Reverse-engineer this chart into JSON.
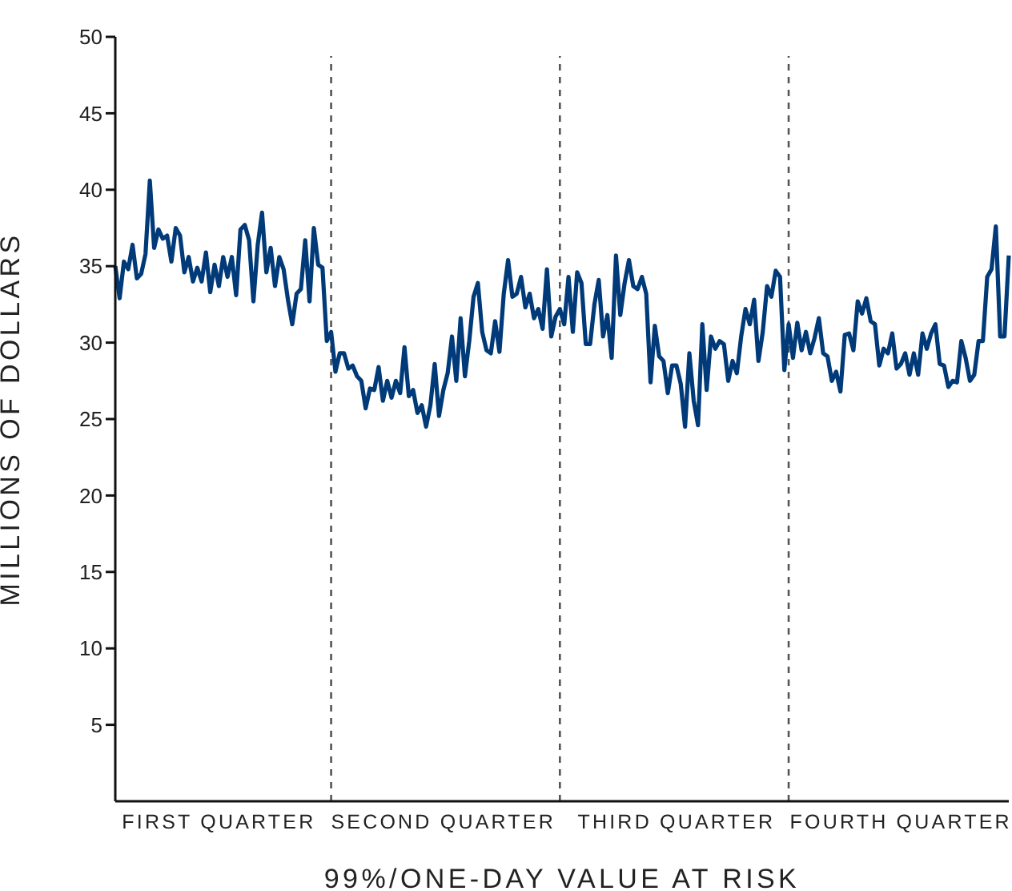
{
  "chart_data": {
    "type": "line",
    "xlabel": "99%/ONE-DAY VALUE AT RISK",
    "ylabel": "MILLIONS OF DOLLARS",
    "categories": [
      null,
      null,
      null,
      null,
      null,
      null,
      null,
      null,
      null,
      null,
      null,
      null,
      null,
      null,
      null,
      null,
      null,
      null,
      null,
      null,
      null,
      null,
      null,
      null,
      "FIRST QUARTER",
      null,
      null,
      null,
      null,
      null,
      null,
      null,
      null,
      null,
      null,
      null,
      null,
      null,
      null,
      null,
      null,
      null,
      null,
      null,
      null,
      null,
      null,
      null,
      null,
      null,
      null,
      null,
      null,
      null,
      null,
      null,
      null,
      null,
      null,
      null,
      null,
      null,
      null,
      null,
      null,
      null,
      null,
      null,
      null,
      null,
      null,
      null,
      null,
      null,
      null,
      null,
      "SECOND QUARTER",
      null,
      null,
      null,
      null,
      null,
      null,
      null,
      null,
      null,
      null,
      null,
      null,
      null,
      null,
      null,
      null,
      null,
      null,
      null,
      null,
      null,
      null,
      null,
      null,
      null,
      null,
      null,
      null,
      null,
      null,
      null,
      null,
      null,
      null,
      null,
      null,
      null,
      null,
      null,
      null,
      null,
      null,
      null,
      null,
      null,
      null,
      null,
      null,
      null,
      null,
      null,
      null,
      null,
      "THIRD QUARTER",
      null,
      null,
      null,
      null,
      null,
      null,
      null,
      null,
      null,
      null,
      null,
      null,
      null,
      null,
      null,
      null,
      null,
      null,
      null,
      null,
      null,
      null,
      null,
      null,
      null,
      null,
      null,
      null,
      null,
      null,
      null,
      null,
      null,
      null,
      null,
      null,
      null,
      null,
      null,
      null,
      null,
      null,
      null,
      null,
      null,
      null,
      null,
      null,
      null,
      null,
      null,
      "FOURTH QUARTER",
      null,
      null,
      null,
      null,
      null,
      null,
      null,
      null,
      null,
      null,
      null,
      null,
      null,
      null,
      null,
      null,
      null,
      null,
      null,
      null,
      null,
      null,
      null,
      null,
      null
    ],
    "ylim": [
      0,
      50
    ],
    "yticks": [
      5,
      10,
      15,
      20,
      25,
      30,
      35,
      40,
      45,
      50
    ],
    "grid": false,
    "legend": false,
    "marker": "none",
    "line_style": "solid",
    "series": [
      {
        "color": "#003a78",
        "values": [
          35.0,
          32.9,
          35.3,
          34.8,
          36.4,
          34.2,
          34.5,
          35.8,
          40.6,
          36.2,
          37.4,
          36.8,
          37.0,
          35.3,
          37.5,
          37.0,
          34.6,
          35.6,
          34.0,
          34.9,
          34.0,
          35.9,
          33.3,
          35.1,
          33.7,
          35.6,
          34.3,
          35.6,
          33.1,
          37.4,
          37.7,
          36.7,
          32.7,
          36.4,
          38.5,
          34.6,
          36.2,
          33.7,
          35.6,
          34.8,
          32.8,
          31.2,
          33.2,
          33.5,
          36.7,
          32.7,
          37.5,
          35.1,
          34.9,
          30.1,
          30.7,
          28.1,
          29.3,
          29.3,
          28.3,
          28.5,
          27.8,
          27.5,
          25.7,
          27.0,
          26.9,
          28.4,
          26.2,
          27.5,
          26.4,
          27.5,
          26.7,
          29.7,
          26.5,
          26.9,
          25.4,
          25.9,
          24.5,
          25.9,
          28.6,
          25.2,
          26.9,
          28.0,
          30.4,
          27.5,
          31.6,
          27.8,
          30.1,
          33.0,
          33.9,
          30.7,
          29.5,
          29.3,
          31.4,
          29.4,
          33.2,
          35.4,
          33.0,
          33.2,
          34.3,
          32.3,
          33.2,
          31.6,
          32.2,
          30.9,
          34.8,
          30.4,
          31.7,
          32.2,
          31.2,
          34.3,
          30.7,
          34.6,
          33.9,
          29.9,
          29.9,
          32.5,
          34.1,
          30.4,
          31.8,
          29.0,
          35.7,
          31.8,
          33.9,
          35.4,
          33.7,
          33.5,
          34.3,
          33.2,
          27.4,
          31.1,
          29.1,
          28.8,
          26.7,
          28.5,
          28.5,
          27.3,
          24.5,
          29.3,
          26.2,
          24.6,
          31.2,
          26.9,
          30.4,
          29.6,
          30.1,
          29.9,
          27.5,
          28.8,
          28.0,
          30.4,
          32.2,
          31.2,
          32.8,
          28.8,
          30.7,
          33.7,
          33.0,
          34.7,
          34.3,
          28.2,
          31.2,
          29.0,
          31.3,
          29.5,
          30.7,
          29.3,
          30.3,
          31.6,
          29.3,
          29.1,
          27.5,
          28.1,
          26.8,
          30.5,
          30.6,
          29.5,
          32.7,
          31.9,
          32.9,
          31.4,
          31.2,
          28.5,
          29.6,
          29.3,
          30.6,
          28.3,
          28.6,
          29.3,
          27.9,
          29.3,
          27.9,
          30.6,
          29.6,
          30.6,
          31.2,
          28.6,
          28.5,
          27.1,
          27.5,
          27.4,
          30.1,
          29.0,
          27.5,
          27.9,
          30.1,
          30.1,
          34.3,
          34.8,
          37.6,
          30.4,
          30.4,
          35.7
        ]
      }
    ]
  }
}
